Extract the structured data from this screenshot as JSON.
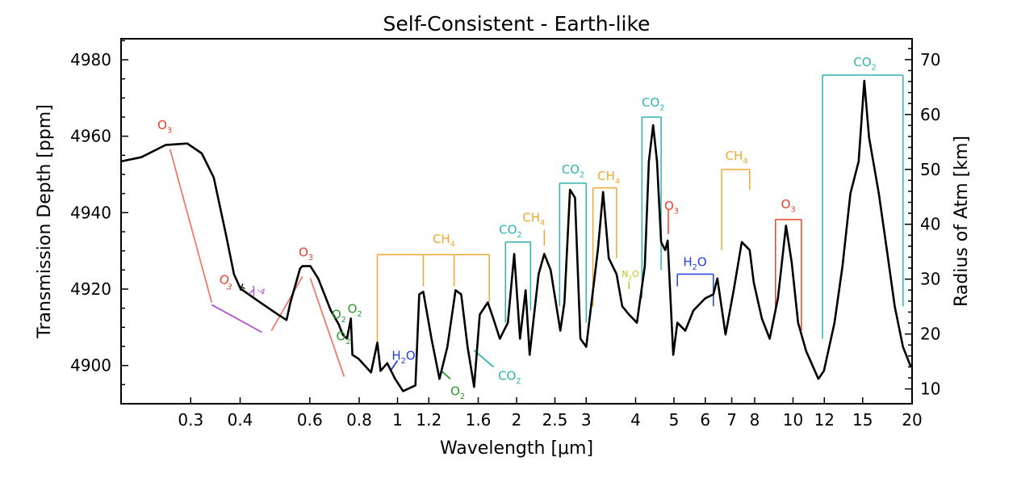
{
  "chart_data": {
    "type": "line",
    "title": "Self-Consistent - Earth-like",
    "xlabel": "Wavelength [μm]",
    "ylabel": "Transmission Depth [ppm]",
    "y2label": "Radius of Atm [km]",
    "xscale": "log",
    "xlim": [
      0.2,
      20
    ],
    "ylim": [
      4890,
      4985.5
    ],
    "y2lim": [
      7.3,
      73.8
    ],
    "grid": false,
    "xticks": [
      0.3,
      0.4,
      0.6,
      0.8,
      1,
      1.2,
      1.6,
      2,
      2.5,
      3,
      4,
      5,
      6,
      7,
      8,
      10,
      12,
      15,
      20
    ],
    "xtick_labels": [
      "0.3",
      "0.4",
      "0.6",
      "0.8",
      "1",
      "1.2",
      "1.6",
      "2",
      "2.5",
      "3",
      "4",
      "5",
      "6",
      "7",
      "8",
      "10",
      "12",
      "15",
      "20"
    ],
    "yticks": [
      4900,
      4920,
      4940,
      4960,
      4980
    ],
    "ytick_labels": [
      "4900",
      "4920",
      "4940",
      "4960",
      "4980"
    ],
    "y2ticks": [
      10,
      20,
      30,
      40,
      50,
      60,
      70
    ],
    "y2tick_labels": [
      "10",
      "20",
      "30",
      "40",
      "50",
      "60",
      "70"
    ],
    "series": [
      {
        "color": "#000000",
        "x": [
          0.2,
          0.225,
          0.259,
          0.294,
          0.32,
          0.343,
          0.368,
          0.386,
          0.401,
          0.444,
          0.499,
          0.524,
          0.536,
          0.567,
          0.575,
          0.602,
          0.63,
          0.678,
          0.71,
          0.727,
          0.745,
          0.762,
          0.769,
          0.798,
          0.857,
          0.889,
          0.906,
          0.942,
          0.986,
          1.033,
          1.11,
          1.135,
          1.162,
          1.219,
          1.277,
          1.337,
          1.402,
          1.449,
          1.504,
          1.562,
          1.614,
          1.691,
          1.747,
          1.815,
          1.901,
          1.973,
          2.041,
          2.108,
          2.158,
          2.274,
          2.35,
          2.439,
          2.58,
          2.643,
          2.73,
          2.81,
          2.9,
          3.0,
          3.21,
          3.31,
          3.42,
          3.58,
          3.7,
          3.85,
          4.03,
          4.22,
          4.32,
          4.43,
          4.53,
          4.64,
          4.75,
          4.82,
          4.98,
          5.1,
          5.34,
          5.6,
          6.0,
          6.29,
          6.44,
          6.75,
          7.08,
          7.42,
          7.77,
          7.96,
          8.34,
          8.73,
          9.16,
          9.6,
          9.92,
          10.3,
          10.79,
          11.59,
          11.97,
          12.73,
          13.34,
          13.97,
          14.65,
          15.14,
          15.57,
          16.48,
          17.27,
          18.08,
          18.97,
          19.87
        ],
        "y": [
          4953.4,
          4954.5,
          4957.7,
          4958.1,
          4955.5,
          4949.2,
          4934.4,
          4923.9,
          4920.1,
          4916.9,
          4913.3,
          4911.9,
          4916.5,
          4925.4,
          4926.0,
          4926.0,
          4922.8,
          4914.4,
          4910.8,
          4908.1,
          4907.0,
          4912.3,
          4902.8,
          4901.7,
          4898.2,
          4906.0,
          4898.6,
          4900.6,
          4896.5,
          4893.3,
          4894.8,
          4918.6,
          4919.3,
          4907.0,
          4896.5,
          4904.9,
          4919.7,
          4918.6,
          4904.9,
          4894.4,
          4913.3,
          4916.5,
          4912.3,
          4907.0,
          4911.2,
          4929.2,
          4907.0,
          4919.7,
          4902.8,
          4923.9,
          4929.2,
          4925.0,
          4909.1,
          4916.5,
          4946.0,
          4943.9,
          4907.0,
          4904.9,
          4930.2,
          4945.4,
          4928.1,
          4923.9,
          4915.5,
          4913.3,
          4911.2,
          4926.0,
          4953.4,
          4962.9,
          4953.4,
          4932.3,
          4930.2,
          4932.7,
          4902.8,
          4911.2,
          4909.1,
          4914.4,
          4917.6,
          4918.6,
          4922.8,
          4908.1,
          4919.7,
          4932.3,
          4930.2,
          4921.7,
          4912.3,
          4907.0,
          4917.6,
          4936.6,
          4927.1,
          4911.2,
          4903.8,
          4896.5,
          4898.6,
          4911.2,
          4926.0,
          4945.0,
          4953.4,
          4974.5,
          4959.7,
          4945.0,
          4930.2,
          4915.5,
          4904.9,
          4899.6
        ]
      }
    ],
    "colors": {
      "O3": "#e8402a",
      "O3_line": "#f07a68",
      "CH4": "#f0a830",
      "CO2": "#2fb3b3",
      "H2O": "#2040e0",
      "O2": "#2a9a2a",
      "N2O": "#c8c020",
      "rayleigh": "#b050d0"
    },
    "brackets": [
      {
        "species": "CH4",
        "x": [
          0.889,
          1.162,
          1.39,
          1.706
        ],
        "top": 4929.0,
        "bottom": [
          4906.0,
          4920.7,
          4920.7,
          4916.5
        ]
      },
      {
        "species": "CO2",
        "x": [
          1.875,
          2.17
        ],
        "top": 4932.3,
        "bottom": [
          4911.2,
          4914.4
        ]
      },
      {
        "species": "CH4",
        "x": [
          2.35
        ],
        "top": 4935.5,
        "bottom": [
          4931.3
        ]
      },
      {
        "species": "CO2",
        "x": [
          2.57,
          3.0
        ],
        "top": 4947.7,
        "bottom": [
          4915.5,
          4911.2
        ]
      },
      {
        "species": "CH4",
        "x": [
          3.12,
          3.58
        ],
        "top": 4946.5,
        "bottom": [
          4915.5,
          4928.1
        ]
      },
      {
        "species": "N2O",
        "x": [
          3.85
        ],
        "top": 4922.0,
        "bottom": [
          4920.0
        ]
      },
      {
        "species": "CO2",
        "x": [
          4.15,
          4.64
        ],
        "top": 4965.0,
        "bottom": [
          4917.6,
          4925.0
        ]
      },
      {
        "species": "O3",
        "x": [
          4.84
        ],
        "top": 4940.8,
        "bottom": [
          4934.4
        ]
      },
      {
        "species": "H2O",
        "x": [
          5.1,
          6.29
        ],
        "top": 4923.9,
        "bottom": [
          4920.7,
          4915.5
        ]
      },
      {
        "species": "CH4",
        "x": [
          6.6,
          7.77
        ],
        "top": 4951.3,
        "bottom": [
          4930.2,
          4946.0
        ]
      },
      {
        "species": "O3",
        "x": [
          9.03,
          10.5
        ],
        "top": 4938.2,
        "bottom": [
          4914.4,
          4909.1
        ]
      },
      {
        "species": "CO2",
        "x": [
          11.87,
          18.97
        ],
        "top": 4976.0,
        "bottom": [
          4907.0,
          4915.5
        ]
      }
    ],
    "segments": [
      {
        "species": "O3_line",
        "x": [
          0.266,
          0.339
        ],
        "y": [
          4956.6,
          4916.5
        ]
      },
      {
        "species": "rayleigh",
        "x": [
          0.339,
          0.454
        ],
        "y": [
          4915.9,
          4908.7
        ]
      },
      {
        "species": "O3_line",
        "x": [
          0.48,
          0.575
        ],
        "y": [
          4909.1,
          4923.3
        ]
      },
      {
        "species": "O3_line",
        "x": [
          0.602,
          0.733
        ],
        "y": [
          4922.8,
          4897.1
        ]
      },
      {
        "species": "H2O",
        "x": [
          0.96,
          1.0
        ],
        "y": [
          4898.6,
          4901.3
        ]
      },
      {
        "species": "O2",
        "x": [
          1.29,
          1.36
        ],
        "y": [
          4898.6,
          4896.5
        ]
      },
      {
        "species": "CO2",
        "x": [
          1.56,
          1.75
        ],
        "y": [
          4904.0,
          4899.6
        ]
      }
    ],
    "annotations": [
      {
        "species": "O3",
        "base": "O",
        "sub": "3",
        "x": 0.258,
        "y": 4962.9
      },
      {
        "species": "O3",
        "base": "O",
        "sub": "3",
        "x": 0.587,
        "y": 4929.6
      },
      {
        "species": "O2",
        "base": "O",
        "sub": "2",
        "x": 0.711,
        "y": 4913.3
      },
      {
        "species": "O2",
        "base": "O",
        "sub": "2",
        "x": 0.78,
        "y": 4914.8
      },
      {
        "species": "O2",
        "base": "O",
        "sub": "2",
        "x": 0.73,
        "y": 4907.6
      },
      {
        "species": "H2O",
        "base": "H",
        "sub": "2",
        "tail": "O",
        "x": 1.036,
        "y": 4902.6
      },
      {
        "species": "CH4",
        "base": "CH",
        "sub": "4",
        "x": 1.31,
        "y": 4933.1
      },
      {
        "species": "O2",
        "base": "O",
        "sub": "2",
        "x": 1.42,
        "y": 4893.3
      },
      {
        "species": "CO2",
        "base": "CO",
        "sub": "2",
        "x": 1.92,
        "y": 4897.3
      },
      {
        "species": "CO2",
        "base": "CO",
        "sub": "2",
        "x": 1.93,
        "y": 4935.5
      },
      {
        "species": "CH4",
        "base": "CH",
        "sub": "4",
        "x": 2.21,
        "y": 4938.7
      },
      {
        "species": "CO2",
        "base": "CO",
        "sub": "2",
        "x": 2.78,
        "y": 4951.3
      },
      {
        "species": "CH4",
        "base": "CH",
        "sub": "4",
        "x": 3.42,
        "y": 4949.6
      },
      {
        "species": "N2O",
        "base": "N",
        "sub": "2",
        "tail": "O",
        "x": 3.88,
        "y": 4923.9,
        "small": true
      },
      {
        "species": "CO2",
        "base": "CO",
        "sub": "2",
        "x": 4.43,
        "y": 4968.8
      },
      {
        "species": "O3",
        "base": "O",
        "sub": "3",
        "x": 4.93,
        "y": 4941.8
      },
      {
        "species": "H2O",
        "base": "H",
        "sub": "2",
        "tail": "O",
        "x": 5.65,
        "y": 4927.1
      },
      {
        "species": "CH4",
        "base": "CH",
        "sub": "4",
        "x": 7.2,
        "y": 4954.9
      },
      {
        "species": "O3",
        "base": "O",
        "sub": "3",
        "x": 9.73,
        "y": 4942.2
      },
      {
        "species": "CO2",
        "base": "CO",
        "sub": "2",
        "x": 15.2,
        "y": 4979.4
      }
    ],
    "rayleigh_label": {
      "o3": "O",
      "o3_sub": "3",
      "plus": "+",
      "lambda": "λ",
      "exp": "-4",
      "x": 0.414,
      "y": 4920.1
    }
  }
}
